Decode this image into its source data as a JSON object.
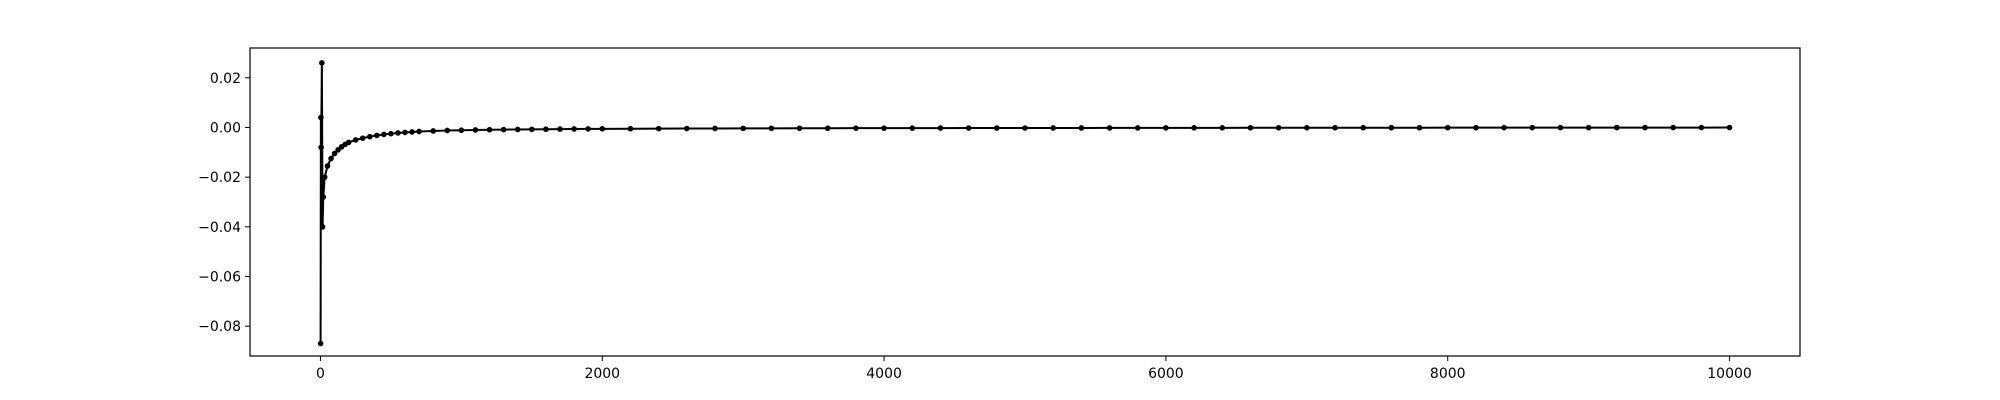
{
  "chart_data": {
    "type": "line",
    "title": "",
    "xlabel": "",
    "ylabel": "",
    "xlim": [
      -500,
      10500
    ],
    "ylim": [
      -0.092,
      0.032
    ],
    "xticks": [
      0,
      2000,
      4000,
      6000,
      8000,
      10000
    ],
    "xtick_labels": [
      "0",
      "2000",
      "4000",
      "6000",
      "8000",
      "10000"
    ],
    "yticks": [
      -0.08,
      -0.06,
      -0.04,
      -0.02,
      0.0,
      0.02
    ],
    "ytick_labels": [
      "−0.08",
      "−0.06",
      "−0.04",
      "−0.02",
      "0.00",
      "0.02"
    ],
    "grid": false,
    "legend": "none",
    "colors": {
      "series": "#000000",
      "axes": "#000000",
      "background": "#ffffff"
    },
    "series": [
      {
        "x": [
          1,
          3,
          5,
          10,
          15,
          20,
          30,
          50,
          75,
          100,
          125,
          150,
          175,
          200,
          250,
          300,
          350,
          400,
          450,
          500,
          550,
          600,
          650,
          700,
          800,
          900,
          1000,
          1100,
          1200,
          1300,
          1400,
          1500,
          1600,
          1700,
          1800,
          1900,
          2000,
          2200,
          2400,
          2600,
          2800,
          3000,
          3200,
          3400,
          3600,
          3800,
          4000,
          4200,
          4400,
          4600,
          4800,
          5000,
          5200,
          5400,
          5600,
          5800,
          6000,
          6200,
          6400,
          6600,
          6800,
          7000,
          7200,
          7400,
          7600,
          7800,
          8000,
          8200,
          8400,
          8600,
          8800,
          9000,
          9200,
          9400,
          9600,
          9800,
          10000
        ],
        "y": [
          -0.087,
          0.004,
          -0.008,
          0.026,
          -0.04,
          -0.028,
          -0.02,
          -0.0155,
          -0.0125,
          -0.0105,
          -0.009,
          -0.0078,
          -0.0068,
          -0.006,
          -0.005,
          -0.0043,
          -0.0037,
          -0.0032,
          -0.0028,
          -0.0025,
          -0.0022,
          -0.002,
          -0.0018,
          -0.0016,
          -0.0014,
          -0.0012,
          -0.0011,
          -0.001,
          -0.0009,
          -0.00085,
          -0.0008,
          -0.00075,
          -0.0007,
          -0.00065,
          -0.0006,
          -0.00057,
          -0.00054,
          -0.0005,
          -0.00046,
          -0.00042,
          -0.00039,
          -0.00036,
          -0.00034,
          -0.00032,
          -0.0003,
          -0.00028,
          -0.00027,
          -0.00025,
          -0.00024,
          -0.00023,
          -0.00022,
          -0.00021,
          -0.0002,
          -0.00019,
          -0.00018,
          -0.00017,
          -0.00016,
          -0.00015,
          -0.00014,
          -0.00013,
          -0.00012,
          -0.00011,
          -0.0001,
          -0.0001,
          -9e-05,
          -9e-05,
          -8e-05,
          -8e-05,
          -7e-05,
          -7e-05,
          -6e-05,
          -6e-05,
          -5e-05,
          -5e-05,
          -4e-05,
          -4e-05,
          -3e-05
        ]
      }
    ]
  }
}
